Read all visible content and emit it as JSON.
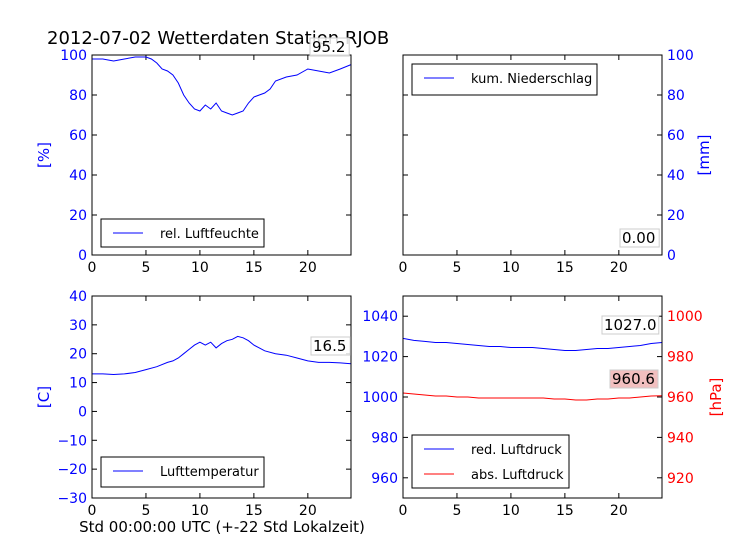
{
  "title": "2012-07-02 Wetterdaten Station RJOB",
  "xlabel": "Std 00:00:00 UTC (+-22 Std Lokalzeit)",
  "chart_data": [
    {
      "id": "humidity",
      "type": "line",
      "title": "",
      "xlabel": "",
      "ylabel": "[%]",
      "xlim": [
        0,
        24
      ],
      "ylim": [
        0,
        100
      ],
      "xticks": [
        0,
        5,
        10,
        15,
        20
      ],
      "yticks": [
        0,
        20,
        40,
        60,
        80,
        100
      ],
      "legend": "bottom-left",
      "last_value_label": "95.2",
      "series": [
        {
          "name": "rel. Luftfeuchte",
          "color": "#0000ff",
          "x": [
            0,
            1,
            2,
            3,
            4,
            5,
            5.5,
            6,
            6.5,
            7,
            7.5,
            8,
            8.5,
            9,
            9.5,
            10,
            10.5,
            11,
            11.5,
            12,
            12.5,
            13,
            13.5,
            14,
            14.5,
            15,
            15.5,
            16,
            16.5,
            17,
            18,
            19,
            20,
            21,
            22,
            23,
            24
          ],
          "y": [
            98,
            98,
            97,
            98,
            99,
            99,
            98,
            96,
            93,
            92,
            90,
            86,
            80,
            76,
            73,
            72,
            75,
            73,
            76,
            72,
            71,
            70,
            71,
            72,
            76,
            79,
            80,
            81,
            83,
            87,
            89,
            90,
            93,
            92,
            91,
            93,
            95.2
          ]
        }
      ]
    },
    {
      "id": "precipitation",
      "type": "line",
      "title": "",
      "xlabel": "",
      "ylabel": "[mm]",
      "xlim": [
        0,
        24
      ],
      "ylim": [
        0,
        100
      ],
      "xticks": [
        0,
        5,
        10,
        15,
        20
      ],
      "yticks": [
        0,
        20,
        40,
        60,
        80,
        100
      ],
      "yaxis_side": "right",
      "legend": "top-left",
      "last_value_label": "0.00",
      "series": [
        {
          "name": "kum. Niederschlag",
          "color": "#0000ff",
          "x": [
            0,
            24
          ],
          "y": [
            0,
            0
          ]
        }
      ]
    },
    {
      "id": "temperature",
      "type": "line",
      "title": "",
      "xlabel": "",
      "ylabel": "[C]",
      "xlim": [
        0,
        24
      ],
      "ylim": [
        -30,
        40
      ],
      "xticks": [
        0,
        5,
        10,
        15,
        20
      ],
      "yticks": [
        -30,
        -20,
        -10,
        0,
        10,
        20,
        30,
        40
      ],
      "legend": "bottom-left",
      "last_value_label": "16.5",
      "series": [
        {
          "name": "Lufttemperatur",
          "color": "#0000ff",
          "x": [
            0,
            1,
            2,
            3,
            4,
            5,
            6,
            7,
            7.5,
            8,
            8.5,
            9,
            9.5,
            10,
            10.5,
            11,
            11.5,
            12,
            12.5,
            13,
            13.5,
            14,
            14.5,
            15,
            15.5,
            16,
            17,
            18,
            19,
            20,
            21,
            22,
            23,
            24
          ],
          "y": [
            13,
            13,
            12.8,
            13,
            13.5,
            14.5,
            15.5,
            17,
            17.5,
            18.5,
            20,
            21.5,
            23,
            24,
            23,
            24,
            22,
            23.5,
            24.5,
            25,
            26,
            25.5,
            24.5,
            23,
            22,
            21,
            20,
            19.5,
            18.5,
            17.5,
            17,
            17,
            16.8,
            16.5
          ]
        }
      ]
    },
    {
      "id": "pressure",
      "type": "line",
      "title": "",
      "xlabel": "",
      "ylabel": "[hPa]",
      "xlim": [
        0,
        24
      ],
      "ylim": [
        950,
        1050
      ],
      "ylim_right": [
        910,
        1010
      ],
      "xticks": [
        0,
        5,
        10,
        15,
        20
      ],
      "yticks": [
        960,
        980,
        1000,
        1020,
        1040
      ],
      "yticks_right": [
        920,
        940,
        960,
        980,
        1000
      ],
      "legend": "bottom-left",
      "series": [
        {
          "name": "red. Luftdruck",
          "color": "#0000ff",
          "axis": "left",
          "last_value_label": "1027.0",
          "x": [
            0,
            1,
            2,
            3,
            4,
            5,
            6,
            7,
            8,
            9,
            10,
            11,
            12,
            13,
            14,
            15,
            16,
            17,
            18,
            19,
            20,
            21,
            22,
            23,
            24
          ],
          "y": [
            1029,
            1028,
            1027.5,
            1027,
            1027,
            1026.5,
            1026,
            1025.5,
            1025,
            1025,
            1024.5,
            1024.5,
            1024.5,
            1024,
            1023.5,
            1023,
            1023,
            1023.5,
            1024,
            1024,
            1024.5,
            1025,
            1025.5,
            1026.5,
            1027
          ]
        },
        {
          "name": "abs. Luftdruck",
          "color": "#ff0000",
          "axis": "right",
          "last_value_label": "960.6",
          "x": [
            0,
            1,
            2,
            3,
            4,
            5,
            6,
            7,
            8,
            9,
            10,
            11,
            12,
            13,
            14,
            15,
            16,
            17,
            18,
            19,
            20,
            21,
            22,
            23,
            24
          ],
          "y": [
            962,
            961.5,
            961,
            960.5,
            960.5,
            960,
            960,
            959.5,
            959.5,
            959.5,
            959.5,
            959.5,
            959.5,
            959.5,
            959,
            959,
            958.5,
            958.5,
            959,
            959,
            959.5,
            959.5,
            960,
            960.5,
            960.6
          ]
        }
      ]
    }
  ]
}
